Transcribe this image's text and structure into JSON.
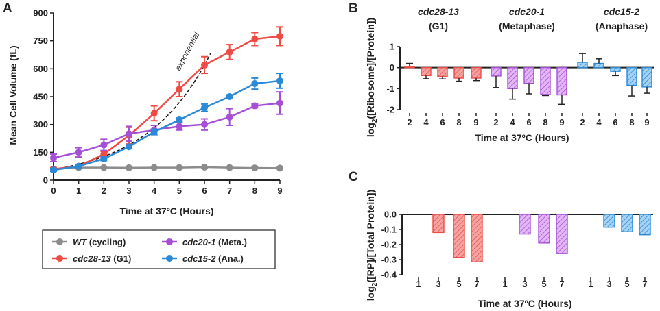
{
  "colors": {
    "wt": "#8c8c8c",
    "red": "#f04a45",
    "purple": "#a64fd6",
    "blue": "#2a8ad8",
    "red_fill": "#f5a3a0",
    "purple_fill": "#d8a3f0",
    "blue_fill": "#8fc4ef"
  },
  "chart_data": [
    {
      "panel": "A",
      "type": "line",
      "ylabel": "Mean Cell Volume (fL)",
      "xlabel": "Time at 37ºC (Hours)",
      "xlim": [
        0,
        9
      ],
      "ylim": [
        0,
        900
      ],
      "xticks": [
        "0",
        "1",
        "2",
        "3",
        "4",
        "5",
        "6",
        "7",
        "8",
        "9"
      ],
      "yticks": [
        "0",
        "150",
        "300",
        "450",
        "600",
        "750",
        "900"
      ],
      "annotation": "exponential",
      "series": [
        {
          "name": "WT",
          "suffix": " (cycling)",
          "color_key": "wt",
          "x": [
            0,
            1,
            2,
            3,
            4,
            5,
            6,
            7,
            8,
            9
          ],
          "y": [
            60,
            68,
            68,
            67,
            68,
            68,
            70,
            68,
            66,
            65
          ],
          "err": [
            4,
            4,
            4,
            4,
            4,
            4,
            4,
            4,
            4,
            4
          ]
        },
        {
          "name": "cdc28-13",
          "suffix": " (G1)",
          "color_key": "red",
          "x": [
            0,
            1,
            2,
            3,
            4,
            5,
            6,
            7,
            8,
            9
          ],
          "y": [
            60,
            75,
            140,
            240,
            360,
            490,
            620,
            690,
            760,
            775
          ],
          "err": [
            8,
            10,
            15,
            45,
            40,
            40,
            45,
            40,
            35,
            50
          ]
        },
        {
          "name": "cdc20-1",
          "suffix": " (Meta.)",
          "color_key": "purple",
          "x": [
            0,
            1,
            2,
            3,
            4,
            5,
            6,
            7,
            8,
            9
          ],
          "y": [
            120,
            150,
            190,
            250,
            270,
            290,
            300,
            340,
            400,
            415
          ],
          "err": [
            20,
            25,
            30,
            40,
            25,
            20,
            30,
            45,
            10,
            60
          ]
        },
        {
          "name": "cdc15-2",
          "suffix": " (Ana.)",
          "color_key": "blue",
          "x": [
            0,
            1,
            2,
            3,
            4,
            5,
            6,
            7,
            8,
            9
          ],
          "y": [
            55,
            75,
            115,
            180,
            260,
            325,
            390,
            450,
            520,
            535
          ],
          "err": [
            8,
            8,
            10,
            10,
            15,
            10,
            20,
            10,
            30,
            40
          ]
        }
      ]
    },
    {
      "panel": "B",
      "type": "bar",
      "ylabel": "log2([Ribosome]/[Protein])",
      "xlabel": "Time at 37ºC (Hours)",
      "ylim": [
        -2,
        1
      ],
      "yticks": [
        "1",
        "0",
        "-1",
        "-2"
      ],
      "groups": [
        {
          "strain": "cdc28-13",
          "phase": "(G1)",
          "color_key": "red",
          "categories": [
            "2",
            "4",
            "6",
            "8",
            "9"
          ],
          "values": [
            0.05,
            -0.38,
            -0.42,
            -0.5,
            -0.5
          ],
          "err": [
            0.15,
            0.15,
            0.12,
            0.15,
            0.12
          ]
        },
        {
          "strain": "cdc20-1",
          "phase": "(Metaphase)",
          "color_key": "purple",
          "categories": [
            "2",
            "4",
            "6",
            "8",
            "9"
          ],
          "values": [
            -0.4,
            -1.0,
            -0.75,
            -1.28,
            -1.3
          ],
          "err": [
            0.55,
            0.5,
            0.5,
            0.05,
            0.45
          ]
        },
        {
          "strain": "cdc15-2",
          "phase": "(Anaphase)",
          "color_key": "blue",
          "categories": [
            "2",
            "4",
            "6",
            "8",
            "9"
          ],
          "values": [
            0.25,
            0.2,
            -0.18,
            -0.85,
            -0.92
          ],
          "err": [
            0.42,
            0.22,
            0.2,
            0.5,
            0.3
          ]
        }
      ]
    },
    {
      "panel": "C",
      "type": "bar",
      "ylabel": "log2([RP]/[Total Protein])",
      "xlabel": "Time at 37ºC (Hours)",
      "ylim": [
        -0.4,
        0.0
      ],
      "yticks": [
        "0.0",
        "-0.1",
        "-0.2",
        "-0.3",
        "-0.4"
      ],
      "groups": [
        {
          "color_key": "red",
          "categories": [
            "1",
            "3",
            "5",
            "7"
          ],
          "values": [
            0,
            -0.12,
            -0.285,
            -0.315
          ]
        },
        {
          "color_key": "purple",
          "categories": [
            "1",
            "3",
            "5",
            "7"
          ],
          "values": [
            0,
            -0.13,
            -0.19,
            -0.26
          ]
        },
        {
          "color_key": "blue",
          "categories": [
            "1",
            "3",
            "5",
            "7"
          ],
          "values": [
            0,
            -0.085,
            -0.115,
            -0.135
          ]
        }
      ]
    }
  ]
}
